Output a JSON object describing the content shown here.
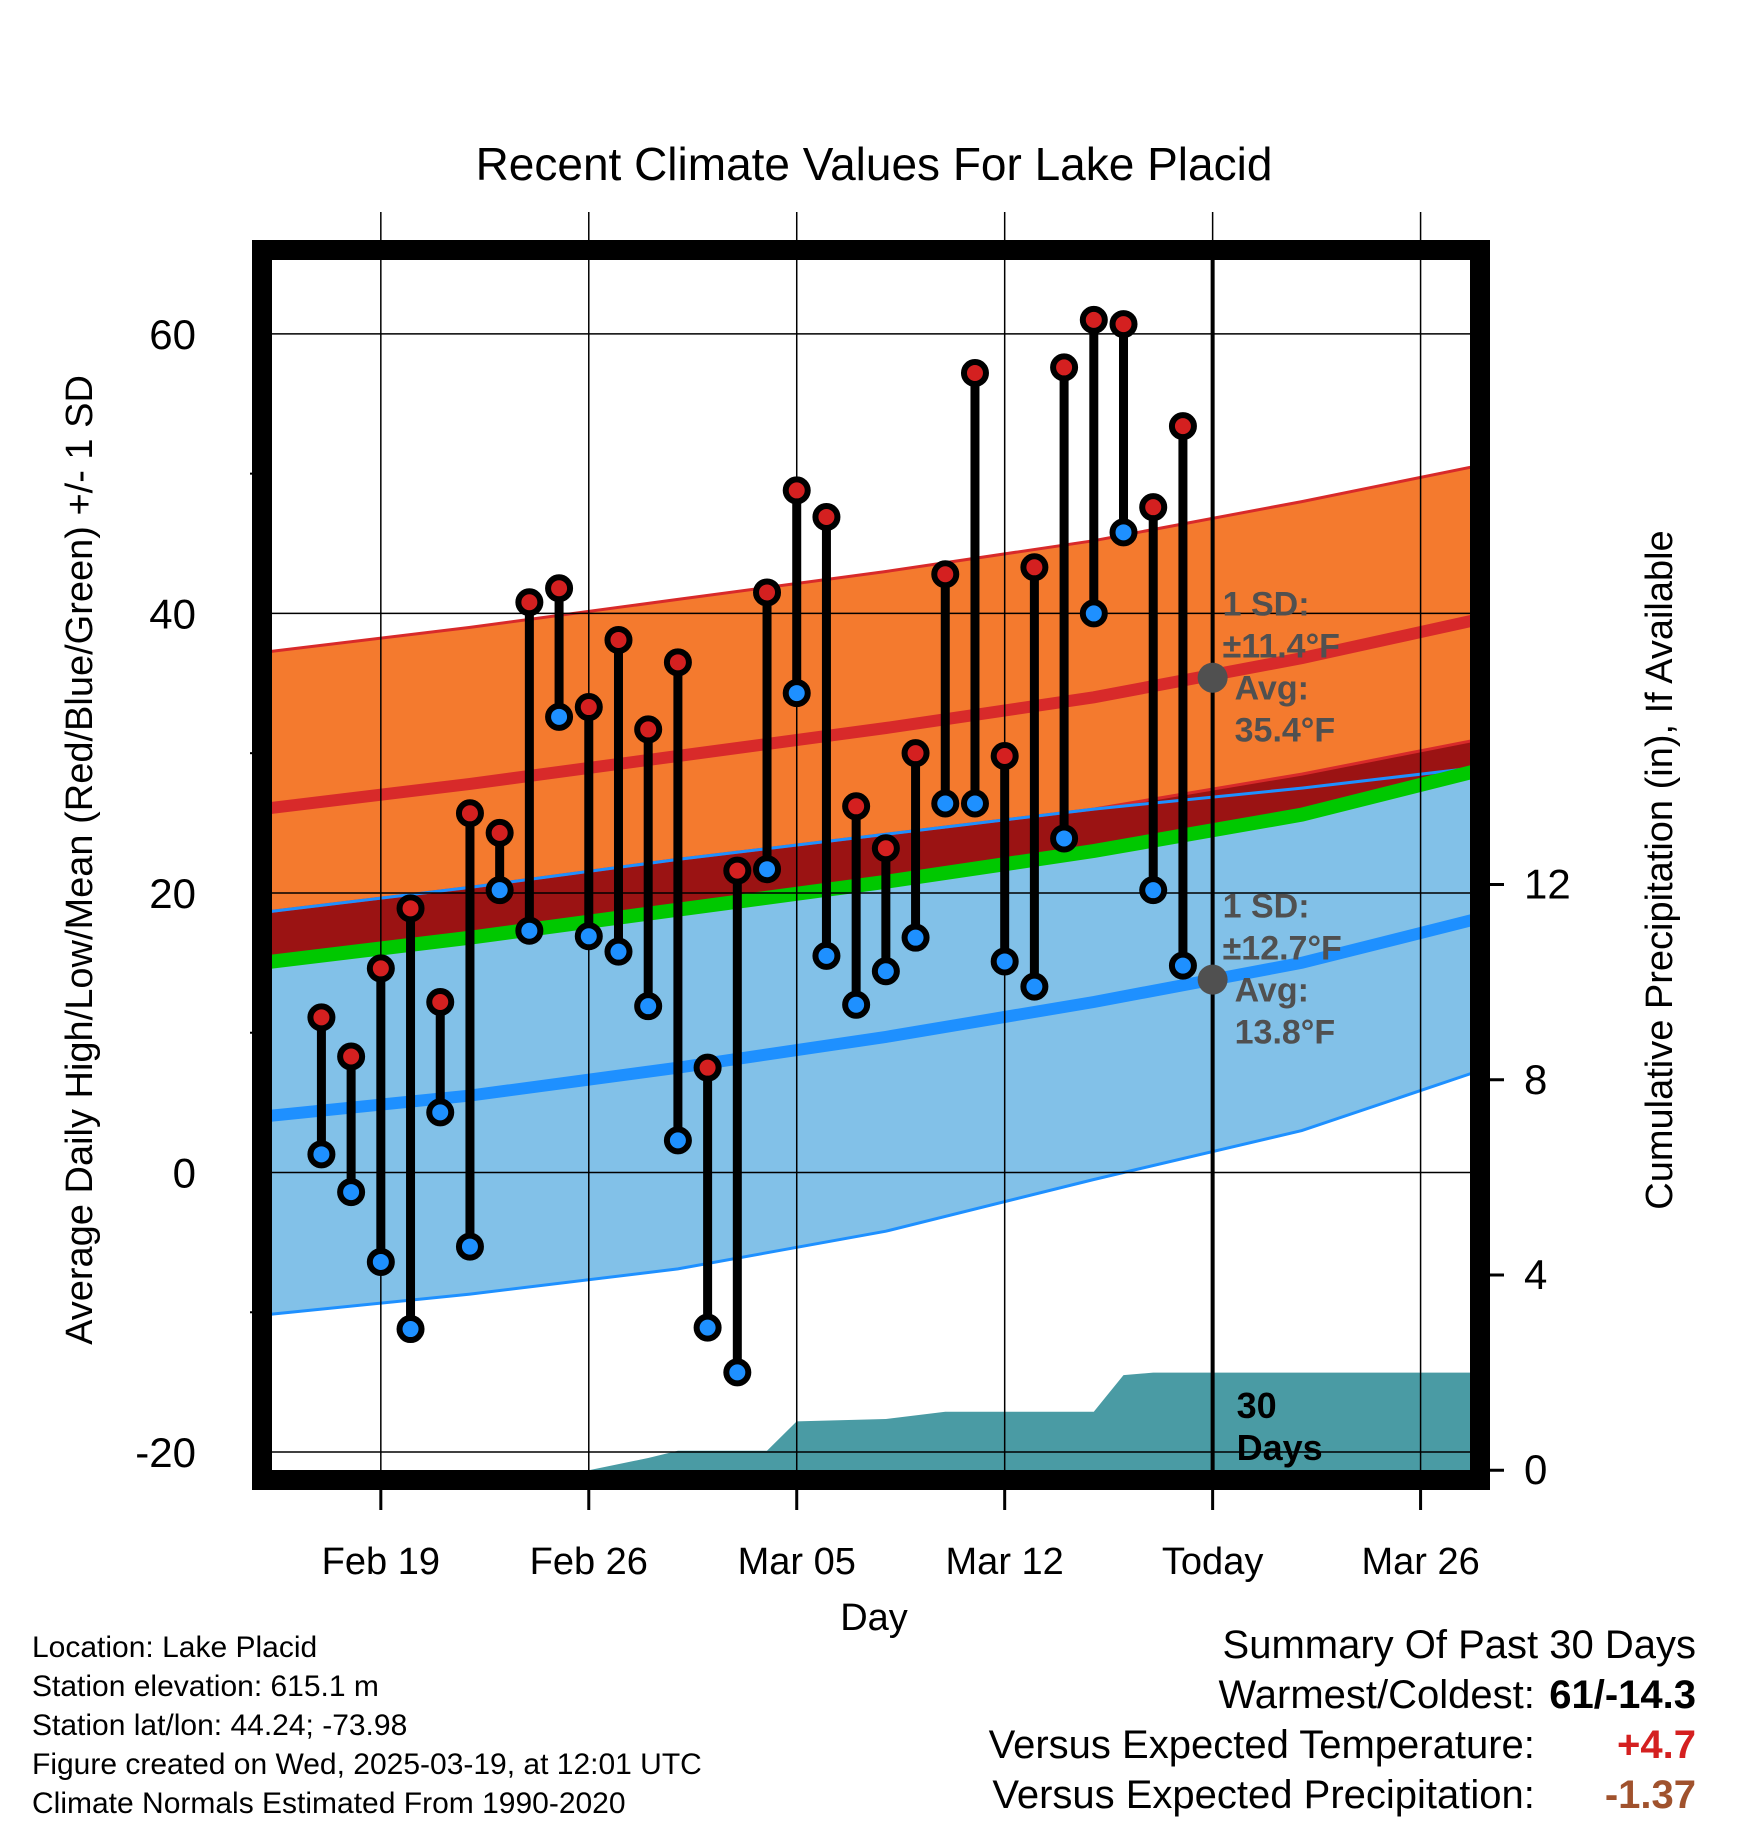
{
  "chart_data": {
    "type": "line",
    "title": "Recent Climate Values For Lake Placid",
    "xlabel": "Day",
    "ylabel": "Average Daily High/Low/Mean (Red/Blue/Green) +/- 1 SD",
    "y2label": "Cumulative Precipitation (in), If Available",
    "x_tick_labels": [
      "Feb 19",
      "Feb 26",
      "Mar 05",
      "Mar 12",
      "Today",
      "Mar 26"
    ],
    "x_tick_dates": [
      "2025-02-19",
      "2025-02-26",
      "2025-03-05",
      "2025-03-12",
      "2025-03-19",
      "2025-03-26"
    ],
    "xlim": [
      "2025-02-15",
      "2025-03-28"
    ],
    "ylim": [
      -22,
      66
    ],
    "y_ticks": [
      -20,
      0,
      20,
      40,
      60
    ],
    "y2lim": [
      -0.2,
      25
    ],
    "y2_ticks": [
      0,
      4,
      8,
      12
    ],
    "grid": true,
    "today": "2025-03-19",
    "colors": {
      "high_band": "#F47A2E",
      "high_edge": "#D82A2A",
      "high_avg": "#D82A2A",
      "low_band": "#82C1E8",
      "low_edge": "#1E90FF",
      "low_avg": "#1E90FF",
      "overlap": "#9B1313",
      "mean": "#00C800",
      "precip": "#4A9BA4",
      "stem": "#000000",
      "high_marker": "#D42020",
      "low_marker": "#1E90FF",
      "annotation": "#505050"
    },
    "normals": {
      "dates": [
        "2025-02-15",
        "2025-02-22",
        "2025-03-01",
        "2025-03-08",
        "2025-03-15",
        "2025-03-22",
        "2025-03-28"
      ],
      "high_avg": [
        26.0,
        27.8,
        29.8,
        31.8,
        34.0,
        36.8,
        39.6
      ],
      "high_sd_upper": [
        37.2,
        39.0,
        41.0,
        43.0,
        45.2,
        48.0,
        50.6
      ],
      "high_sd_lower": [
        18.6,
        20.4,
        22.4,
        24.2,
        26.0,
        28.5,
        31.0
      ],
      "low_avg": [
        4.0,
        5.5,
        7.5,
        9.7,
        12.2,
        15.0,
        18.2
      ],
      "low_sd_upper": [
        18.6,
        20.4,
        22.4,
        24.2,
        26.0,
        27.5,
        29.0
      ],
      "low_sd_lower": [
        -10.2,
        -8.7,
        -6.9,
        -4.2,
        -0.5,
        3.0,
        7.3
      ],
      "mean_avg": [
        15.0,
        16.8,
        18.8,
        20.8,
        23.0,
        25.6,
        28.8
      ]
    },
    "series": [
      {
        "name": "High",
        "dates": [
          "2025-02-17",
          "2025-02-18",
          "2025-02-19",
          "2025-02-20",
          "2025-02-21",
          "2025-02-22",
          "2025-02-23",
          "2025-02-24",
          "2025-02-25",
          "2025-02-26",
          "2025-02-27",
          "2025-02-28",
          "2025-03-01",
          "2025-03-02",
          "2025-03-03",
          "2025-03-04",
          "2025-03-05",
          "2025-03-06",
          "2025-03-07",
          "2025-03-08",
          "2025-03-09",
          "2025-03-10",
          "2025-03-11",
          "2025-03-12",
          "2025-03-13",
          "2025-03-14",
          "2025-03-15",
          "2025-03-16",
          "2025-03-17",
          "2025-03-18"
        ],
        "values": [
          11.1,
          8.3,
          14.6,
          18.9,
          12.2,
          25.7,
          24.3,
          40.8,
          41.8,
          33.3,
          38.1,
          31.7,
          36.5,
          7.5,
          21.6,
          41.5,
          48.8,
          46.9,
          26.2,
          23.2,
          30.0,
          42.8,
          57.2,
          29.8,
          43.3,
          57.6,
          61.0,
          60.7,
          47.6,
          53.4
        ]
      },
      {
        "name": "Low",
        "dates": [
          "2025-02-17",
          "2025-02-18",
          "2025-02-19",
          "2025-02-20",
          "2025-02-21",
          "2025-02-22",
          "2025-02-23",
          "2025-02-24",
          "2025-02-25",
          "2025-02-26",
          "2025-02-27",
          "2025-02-28",
          "2025-03-01",
          "2025-03-02",
          "2025-03-03",
          "2025-03-04",
          "2025-03-05",
          "2025-03-06",
          "2025-03-07",
          "2025-03-08",
          "2025-03-09",
          "2025-03-10",
          "2025-03-11",
          "2025-03-12",
          "2025-03-13",
          "2025-03-14",
          "2025-03-15",
          "2025-03-16",
          "2025-03-17",
          "2025-03-18"
        ],
        "values": [
          1.3,
          -1.4,
          -6.4,
          -11.2,
          4.3,
          -5.3,
          20.2,
          17.3,
          32.6,
          16.9,
          15.8,
          11.9,
          2.3,
          -11.1,
          -14.3,
          21.7,
          34.3,
          15.5,
          12.0,
          14.4,
          16.8,
          26.4,
          26.4,
          15.1,
          13.3,
          23.9,
          40.0,
          45.8,
          20.2,
          14.8
        ]
      }
    ],
    "precip": {
      "dates": [
        "2025-02-15",
        "2025-02-26",
        "2025-02-28",
        "2025-03-01",
        "2025-03-04",
        "2025-03-05",
        "2025-03-08",
        "2025-03-10",
        "2025-03-15",
        "2025-03-16",
        "2025-03-17",
        "2025-03-28"
      ],
      "values": [
        0.0,
        0.0,
        0.25,
        0.4,
        0.4,
        1.0,
        1.05,
        1.2,
        1.2,
        1.95,
        2.0,
        2.0
      ]
    },
    "annotations": {
      "high": {
        "line1": "1 SD:",
        "line2": "±11.4°F",
        "line3": "Avg:",
        "line4": "35.4°F",
        "avg_value": 35.4
      },
      "low": {
        "line1": "1 SD:",
        "line2": "±12.7°F",
        "line3": "Avg:",
        "line4": "13.8°F",
        "avg_value": 13.8
      },
      "precip_window_line1": "30",
      "precip_window_line2": "Days"
    }
  },
  "info": {
    "location": "Location: Lake Placid",
    "elevation": "Station elevation: 615.1 m",
    "latlon": "Station lat/lon: 44.24; -73.98",
    "created": "Figure created on Wed, 2025-03-19, at 12:01 UTC",
    "normals": "Climate Normals Estimated From 1990-2020"
  },
  "summary": {
    "title": "Summary Of Past 30 Days",
    "warmest_coldest_label": "Warmest/Coldest:",
    "warmest_coldest_value": "61/-14.3",
    "temp_label": "Versus Expected Temperature:",
    "temp_value": "+4.7",
    "temp_color": "#D42020",
    "precip_label": "Versus Expected Precipitation:",
    "precip_value": "-1.37",
    "precip_color": "#A0522D"
  }
}
